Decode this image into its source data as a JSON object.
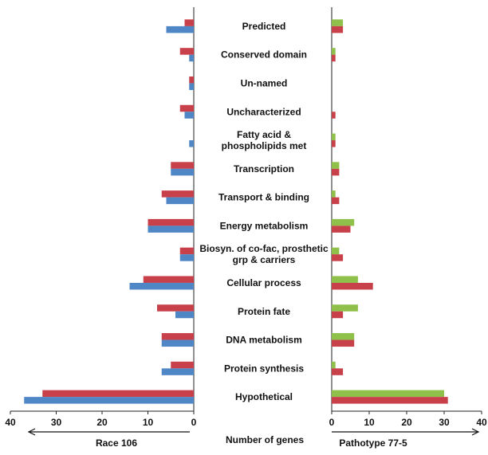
{
  "chart_data": {
    "type": "bar",
    "orientation": "horizontal",
    "categories": [
      "Predicted",
      "Conserved domain",
      "Un-named",
      "Uncharacterized",
      "Fatty acid  &\nphospholipids met",
      "Transcription",
      "Transport & binding",
      "Energy metabolism",
      "Biosyn. of co-fac, prosthetic\ngrp & carriers",
      "Cellular process",
      "Protein fate",
      "DNA metabolism",
      "Protein synthesis",
      "Hypothetical"
    ],
    "panels": [
      {
        "side": "left",
        "label": "Race 106",
        "xlim": [
          0,
          40
        ],
        "ticks": [
          40,
          30,
          20,
          10,
          0
        ],
        "series": [
          {
            "color": "#c8404a",
            "values": [
              2,
              3,
              1,
              3,
              0,
              5,
              7,
              10,
              3,
              11,
              8,
              7,
              5,
              33
            ]
          },
          {
            "color": "#4f86c6",
            "values": [
              6,
              1,
              1,
              2,
              1,
              5,
              6,
              10,
              3,
              14,
              4,
              7,
              7,
              37
            ]
          }
        ]
      },
      {
        "side": "right",
        "label": "Pathotype 77-5",
        "xlim": [
          0,
          40
        ],
        "ticks": [
          0,
          10,
          20,
          30,
          40
        ],
        "series": [
          {
            "color": "#8fc04a",
            "values": [
              3,
              1,
              0,
              0,
              1,
              2,
              1,
              6,
              2,
              7,
              7,
              6,
              1,
              30
            ]
          },
          {
            "color": "#c8404a",
            "values": [
              3,
              1,
              0,
              1,
              1,
              2,
              2,
              5,
              3,
              11,
              3,
              6,
              3,
              31
            ]
          }
        ]
      }
    ],
    "center_label": "Number of genes"
  }
}
